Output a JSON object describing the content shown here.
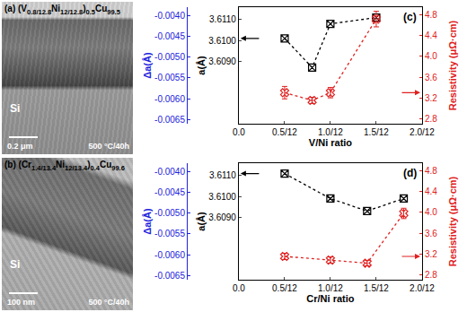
{
  "micrographs": [
    {
      "label": "(a)",
      "composition": [
        {
          "text": "(V"
        },
        {
          "sub": "0.8/12.8"
        },
        {
          "text": "Ni"
        },
        {
          "sub": "12/12.8"
        },
        {
          "text": ")"
        },
        {
          "sub": "0.5"
        },
        {
          "text": "Cu"
        },
        {
          "sub": "99.5"
        }
      ],
      "substrate": "Si",
      "scale_bar": "0.2 μm",
      "condition": "500 °C/40h"
    },
    {
      "label": "(b)",
      "composition": [
        {
          "text": "(Cr"
        },
        {
          "sub": "1.4/13.4"
        },
        {
          "text": "Ni"
        },
        {
          "sub": "12/13.4"
        },
        {
          "text": ")"
        },
        {
          "sub": "0.4"
        },
        {
          "text": "Cu"
        },
        {
          "sub": "99.6"
        }
      ],
      "substrate": "Si",
      "scale_bar": "100 nm",
      "condition": "500 °C/40h"
    }
  ],
  "chart_data": [
    {
      "type": "line",
      "label": "(c)",
      "x_label": "V/Ni ratio",
      "x": [
        0.0417,
        0.0667,
        0.0833,
        0.125
      ],
      "xlim": [
        0,
        0.1667
      ],
      "xticks": [
        {
          "value": 0,
          "label": "0.0"
        },
        {
          "value": 0.0417,
          "label": "0.5/12"
        },
        {
          "value": 0.0833,
          "label": "1.0/12"
        },
        {
          "value": 0.125,
          "label": "1.5/12"
        },
        {
          "value": 0.1667,
          "label": "2.0/12"
        }
      ],
      "y_label": "a(Å)",
      "ylim": [
        3.606,
        3.6116
      ],
      "yticks": [
        {
          "value": 3.609,
          "label": "3.6090"
        },
        {
          "value": 3.61,
          "label": "3.6100"
        },
        {
          "value": 3.611,
          "label": "3.6110"
        }
      ],
      "y2_label": "Resistivity (μΩ·cm)",
      "y2lim": [
        2.7,
        4.95
      ],
      "y2ticks": [
        2.8,
        3.2,
        3.6,
        {
          "value": 4,
          "label": "4.0"
        },
        4.4,
        4.8
      ],
      "y3_label": "Δa(Å)",
      "y3lim": [
        -0.0066,
        -0.0038
      ],
      "y3ticks": [
        {
          "value": -0.004,
          "label": "-0.0040"
        },
        {
          "value": -0.0045,
          "label": "-0.0045"
        },
        {
          "value": -0.005,
          "label": "-0.0050"
        },
        {
          "value": -0.0055,
          "label": "-0.0055"
        },
        {
          "value": -0.006,
          "label": "-0.0060"
        },
        {
          "value": -0.0065,
          "label": "-0.0065"
        }
      ],
      "series": [
        {
          "color": "#000000",
          "marker": "square-x-open",
          "line_style": "dot",
          "values": [
            3.6101,
            3.6087,
            3.6108,
            3.6111
          ]
        },
        {
          "axis": "y2",
          "color": "#e02020",
          "marker": "x-open",
          "line_style": "dot",
          "values": [
            3.3,
            3.15,
            3.3,
            4.72
          ],
          "error": [
            0.12,
            0.06,
            0.1,
            0.15
          ]
        }
      ]
    },
    {
      "type": "line",
      "label": "(d)",
      "x_label": "Cr/Ni ratio",
      "x": [
        0.0417,
        0.0833,
        0.1167,
        0.15
      ],
      "xlim": [
        0,
        0.1667
      ],
      "xticks": [
        {
          "value": 0,
          "label": "0.0"
        },
        {
          "value": 0.0417,
          "label": "0.5/12"
        },
        {
          "value": 0.0833,
          "label": "1.0/12"
        },
        {
          "value": 0.125,
          "label": "1.5/12"
        },
        {
          "value": 0.1667,
          "label": "2.0/12"
        }
      ],
      "y_label": "a(Å)",
      "ylim": [
        3.606,
        3.6116
      ],
      "yticks": [
        {
          "value": 3.609,
          "label": "3.6090"
        },
        {
          "value": 3.61,
          "label": "3.6100"
        },
        {
          "value": 3.611,
          "label": "3.6110"
        }
      ],
      "y2_label": "Resistivity (μΩ·cm)",
      "y2lim": [
        2.7,
        4.95
      ],
      "y2ticks": [
        2.8,
        3.2,
        3.6,
        {
          "value": 4,
          "label": "4.0"
        },
        4.4,
        4.8
      ],
      "y3_label": "Δa(Å)",
      "y3lim": [
        -0.0066,
        -0.0038
      ],
      "y3ticks": [
        {
          "value": -0.004,
          "label": "-0.0040"
        },
        {
          "value": -0.0045,
          "label": "-0.0045"
        },
        {
          "value": -0.005,
          "label": "-0.0050"
        },
        {
          "value": -0.0055,
          "label": "-0.0055"
        },
        {
          "value": -0.006,
          "label": "-0.0060"
        },
        {
          "value": -0.0065,
          "label": "-0.0065"
        }
      ],
      "series": [
        {
          "color": "#000000",
          "marker": "square-x-open",
          "line_style": "dot",
          "values": [
            3.6111,
            3.6099,
            3.6093,
            3.6099
          ]
        },
        {
          "axis": "y2",
          "color": "#e02020",
          "marker": "x-open",
          "line_style": "dot",
          "values": [
            3.15,
            3.08,
            3.02,
            3.98
          ],
          "error": [
            0.06,
            0.06,
            0.05,
            0.1
          ]
        }
      ]
    }
  ]
}
